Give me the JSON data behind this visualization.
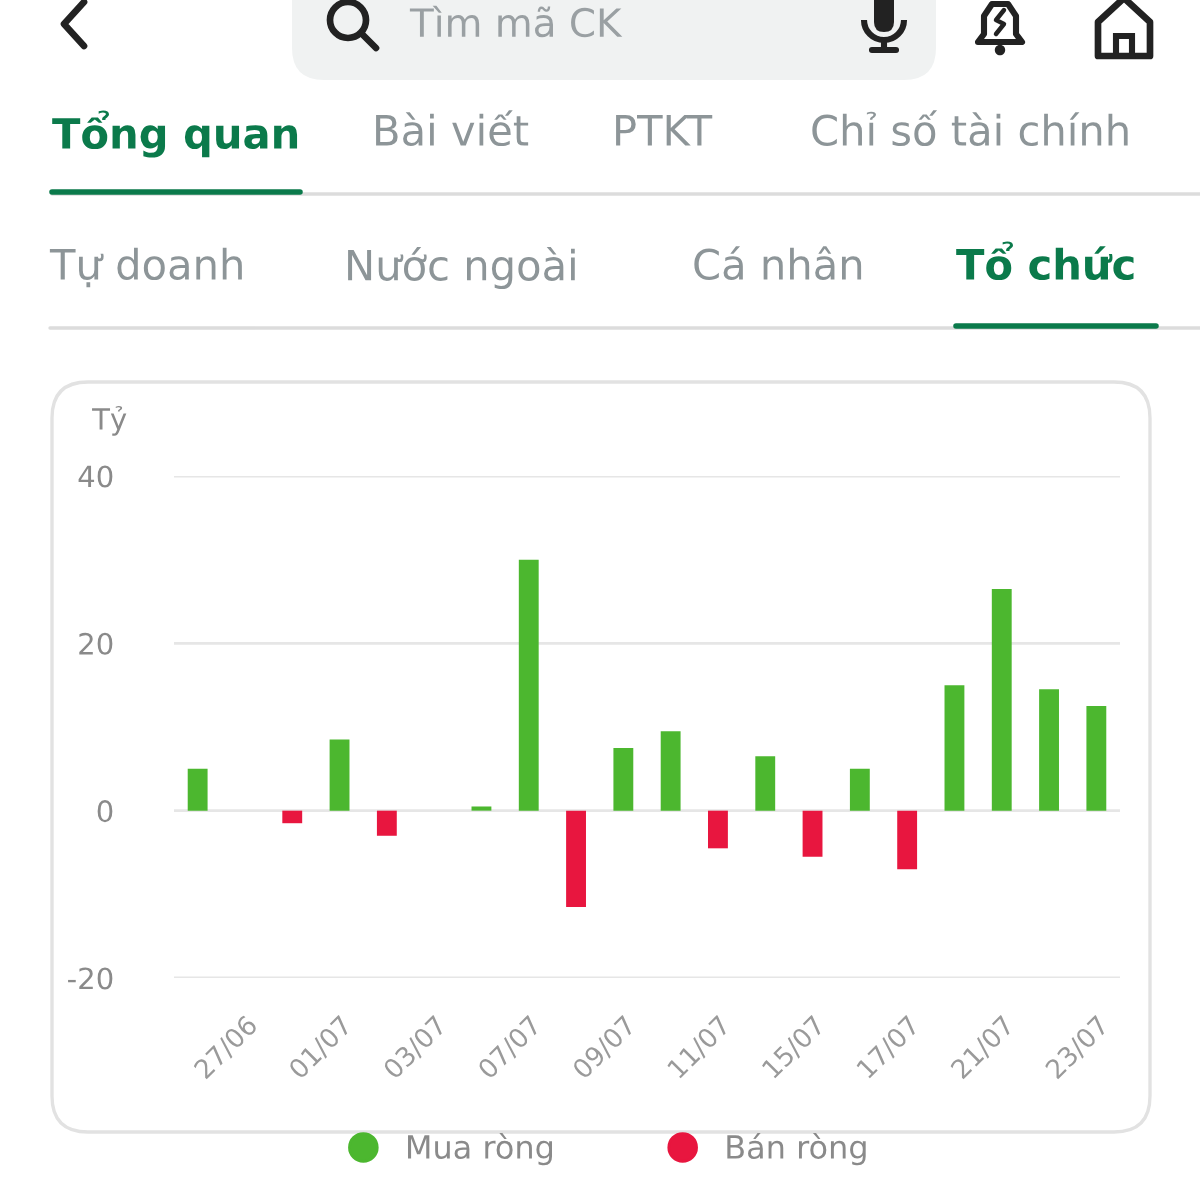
{
  "chart_data": {
    "type": "bar",
    "ylabel": "Tỷ",
    "annotations": [
      "Tìm mã CK",
      "Tổng quan",
      "Bài viết",
      "PTKT",
      "Chỉ số tài chính",
      "Tự doanh",
      "Nước ngoài",
      "Cá nhân",
      "Tổ chức"
    ],
    "categories": [
      null,
      "27/06",
      null,
      "01/07",
      null,
      "03/07",
      null,
      "07/07",
      null,
      "09/07",
      null,
      "11/07",
      null,
      "15/07",
      null,
      "17/07",
      null,
      "21/07",
      null,
      "23/07"
    ],
    "series": [
      {
        "name": "Mua ròng",
        "color": "#4cb72f",
        "values": [
          5,
          null,
          null,
          8.5,
          null,
          null,
          0.5,
          30,
          null,
          7.5,
          9.5,
          null,
          6.5,
          null,
          5,
          null,
          15,
          26.5,
          14.5,
          12.5
        ]
      },
      {
        "name": "Bán ròng",
        "color": "#e8163f",
        "values": [
          null,
          null,
          -1.5,
          null,
          -3,
          null,
          null,
          null,
          -11.5,
          null,
          null,
          -4.5,
          null,
          -5.5,
          null,
          -7,
          null,
          null,
          null,
          null
        ]
      }
    ],
    "ylim": [
      -20,
      40
    ],
    "yticks": [
      -20,
      0,
      20,
      40
    ],
    "grid": "y",
    "legend": "bottom"
  }
}
